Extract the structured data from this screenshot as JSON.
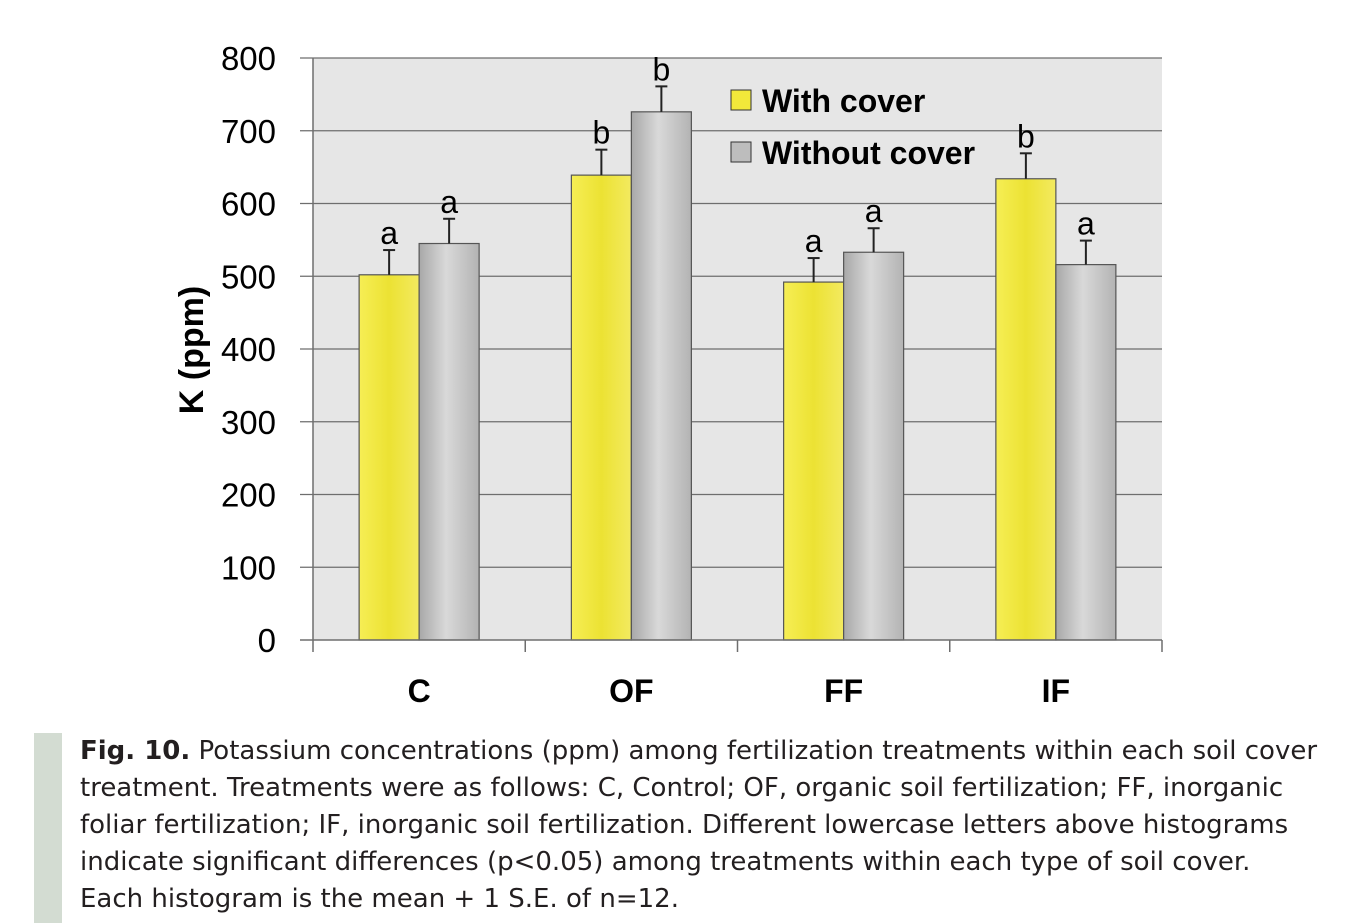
{
  "chart_data": {
    "type": "bar",
    "categories": [
      "C",
      "OF",
      "FF",
      "IF"
    ],
    "series": [
      {
        "name": "With cover",
        "color": "#f2e93a",
        "values": [
          502,
          639,
          492,
          634
        ],
        "errors": [
          34,
          35,
          33,
          35
        ],
        "letters": [
          "a",
          "b",
          "a",
          "b"
        ]
      },
      {
        "name": "Without cover",
        "color": "#bdbdbd",
        "values": [
          545,
          726,
          533,
          516
        ],
        "errors": [
          34,
          35,
          33,
          33
        ],
        "letters": [
          "a",
          "b",
          "a",
          "a"
        ]
      }
    ],
    "ylabel": "K (ppm)",
    "ylim": [
      0,
      800
    ],
    "yticks": [
      0,
      100,
      200,
      300,
      400,
      500,
      600,
      700,
      800
    ],
    "grid": true,
    "legend": "top-right",
    "plot_background": "#e6e6e6"
  },
  "caption": {
    "label": "Fig. 10.",
    "text": " Potassium concentrations (ppm) among fertilization treatments within each soil cover treatment. Treatments were as follows: C, Control; OF, organic soil fertilization; FF, inorganic foliar fertilization; IF, inorganic soil fertilization. Different lowercase letters above histograms indicate significant differences (p<0.05) among treatments within each type of soil cover. Each histogram is the mean + 1 S.E. of n=12."
  }
}
